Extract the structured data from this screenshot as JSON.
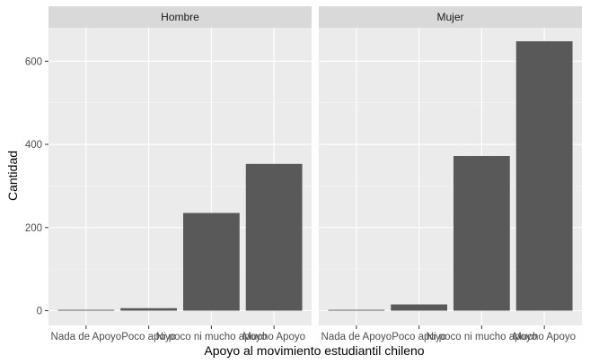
{
  "chart_data": {
    "type": "bar",
    "xlabel": "Apoyo al movimiento estudiantil chileno",
    "ylabel": "Cantidad",
    "categories": [
      "Nada de Apoyo",
      "Poco apoyo",
      "Ni poco ni mucho apoyo",
      "Mucho Apoyo"
    ],
    "ylim": [
      0,
      650
    ],
    "yticks": [
      0,
      200,
      400,
      600
    ],
    "grid": true,
    "bar_color": "#595959",
    "panel_background": "#ebebeb",
    "strip_background": "#d9d9d9",
    "panels": [
      {
        "strip_label": "Hombre",
        "values": [
          2,
          6,
          235,
          353
        ]
      },
      {
        "strip_label": "Mujer",
        "values": [
          2,
          15,
          372,
          648
        ]
      }
    ]
  }
}
